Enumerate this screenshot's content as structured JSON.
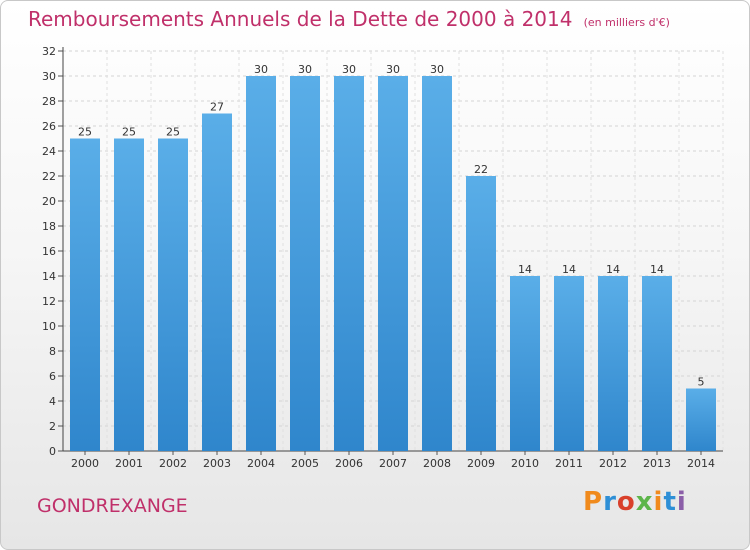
{
  "title": "Remboursements Annuels de la Dette de 2000 à 2014",
  "unit_note": "(en milliers d'€)",
  "commune": "GONDREXANGE",
  "logo": {
    "text": "Proxiti",
    "colors": [
      "#f08a1c",
      "#2e8fd6",
      "#d9402b",
      "#5db54a",
      "#f08a1c",
      "#2e8fd6",
      "#8b5ea8"
    ]
  },
  "colors": {
    "title": "#c0306a",
    "bar_light": "#5aaee8",
    "bar_dark": "#2f86cc"
  },
  "chart_data": {
    "type": "bar",
    "categories": [
      "2000",
      "2001",
      "2002",
      "2003",
      "2004",
      "2005",
      "2006",
      "2007",
      "2008",
      "2009",
      "2010",
      "2011",
      "2012",
      "2013",
      "2014"
    ],
    "values": [
      25,
      25,
      25,
      27,
      30,
      30,
      30,
      30,
      30,
      22,
      14,
      14,
      14,
      14,
      5
    ],
    "ylim": [
      0,
      32
    ],
    "yticks": [
      0,
      2,
      4,
      6,
      8,
      10,
      12,
      14,
      16,
      18,
      20,
      22,
      24,
      26,
      28,
      30,
      32
    ],
    "grid": true,
    "xlabel": "",
    "ylabel": ""
  }
}
